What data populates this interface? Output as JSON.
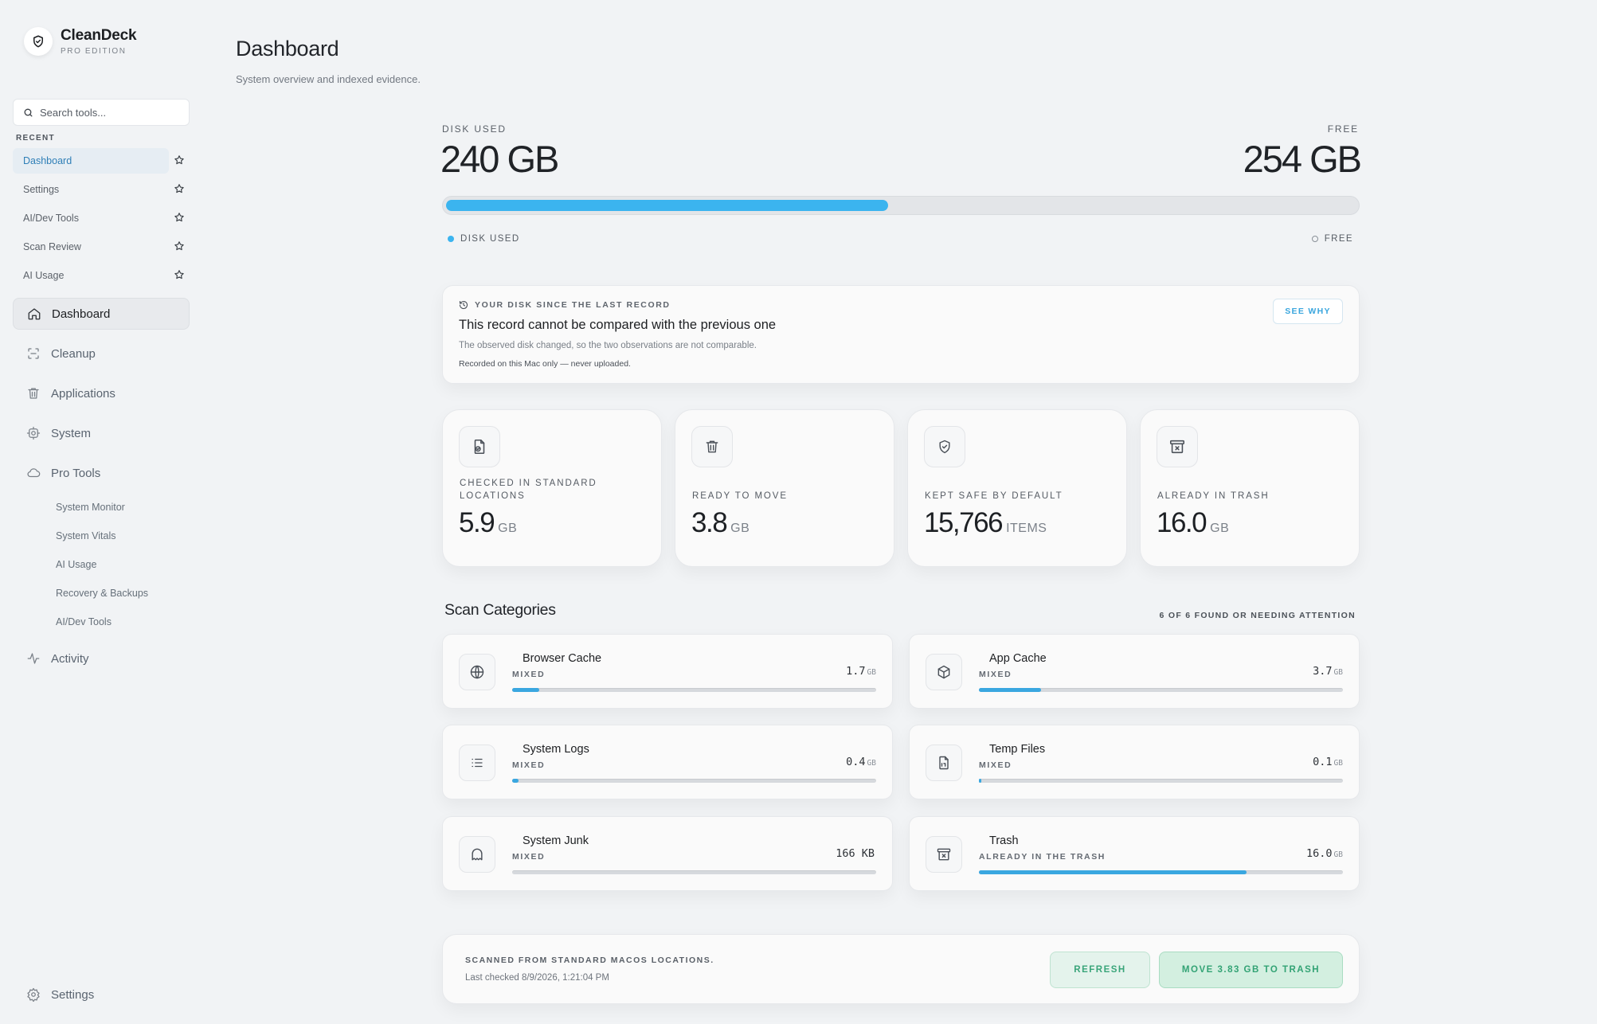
{
  "brand": {
    "name": "CleanDeck",
    "edition": "PRO EDITION"
  },
  "search": {
    "placeholder": "Search tools..."
  },
  "recent": {
    "label": "RECENT",
    "items": [
      {
        "label": "Dashboard"
      },
      {
        "label": "Settings"
      },
      {
        "label": "AI/Dev Tools"
      },
      {
        "label": "Scan Review"
      },
      {
        "label": "AI Usage"
      }
    ]
  },
  "nav": {
    "items": [
      {
        "label": "Dashboard",
        "icon": "home-icon"
      },
      {
        "label": "Cleanup",
        "icon": "scan-icon"
      },
      {
        "label": "Applications",
        "icon": "trash-icon"
      },
      {
        "label": "System",
        "icon": "gear-icon"
      },
      {
        "label": "Pro Tools",
        "icon": "cloud-icon"
      },
      {
        "label": "Activity",
        "icon": "activity-icon"
      }
    ],
    "pro_tools_sub": [
      {
        "label": "System Monitor"
      },
      {
        "label": "System Vitals"
      },
      {
        "label": "AI Usage"
      },
      {
        "label": "Recovery & Backups"
      },
      {
        "label": "AI/Dev Tools"
      }
    ],
    "settings": {
      "label": "Settings",
      "icon": "gear-icon"
    }
  },
  "header": {
    "title": "Dashboard",
    "subtitle": "System overview and indexed evidence."
  },
  "disk": {
    "used_label": "DISK USED",
    "used_value": "240 GB",
    "free_label": "FREE",
    "free_value": "254 GB",
    "used_fraction": 0.485,
    "legend_used": "DISK USED",
    "legend_free": "FREE",
    "color_used": "#3bb4ef"
  },
  "record": {
    "eyebrow": "YOUR DISK SINCE THE LAST RECORD",
    "title": "This record cannot be compared with the previous one",
    "description": "The observed disk changed, so the two observations are not comparable.",
    "note": "Recorded on this Mac only — never uploaded.",
    "button": "SEE WHY"
  },
  "stats": [
    {
      "label": "CHECKED IN STANDARD LOCATIONS",
      "value": "5.9",
      "unit": "GB",
      "icon": "file-check-icon"
    },
    {
      "label": "READY TO MOVE",
      "value": "3.8",
      "unit": "GB",
      "icon": "trash-icon"
    },
    {
      "label": "KEPT SAFE BY DEFAULT",
      "value": "15,766",
      "unit": "ITEMS",
      "icon": "shield-check-icon"
    },
    {
      "label": "ALREADY IN TRASH",
      "value": "16.0",
      "unit": "GB",
      "icon": "archive-x-icon"
    }
  ],
  "categories": {
    "title": "Scan Categories",
    "meta": "6 OF 6 FOUND OR NEEDING ATTENTION",
    "items": [
      {
        "name": "Browser Cache",
        "tag": "MIXED",
        "size": "1.7",
        "unit": "GB",
        "fraction": 0.075,
        "icon": "globe-icon"
      },
      {
        "name": "App Cache",
        "tag": "MIXED",
        "size": "3.7",
        "unit": "GB",
        "fraction": 0.17,
        "icon": "box-icon"
      },
      {
        "name": "System Logs",
        "tag": "MIXED",
        "size": "0.4",
        "unit": "GB",
        "fraction": 0.018,
        "icon": "list-icon"
      },
      {
        "name": "Temp Files",
        "tag": "MIXED",
        "size": "0.1",
        "unit": "GB",
        "fraction": 0.006,
        "icon": "file-code-icon"
      },
      {
        "name": "System Junk",
        "tag": "MIXED",
        "size": "166 KB",
        "unit": "",
        "fraction": 0.0,
        "icon": "ghost-icon"
      },
      {
        "name": "Trash",
        "tag": "ALREADY IN THE TRASH",
        "size": "16.0",
        "unit": "GB",
        "fraction": 0.735,
        "icon": "archive-x-icon"
      }
    ]
  },
  "footer": {
    "title": "SCANNED FROM STANDARD MACOS LOCATIONS.",
    "subtitle": "Last checked 8/9/2026, 1:21:04 PM",
    "refresh_label": "REFRESH",
    "move_label": "MOVE 3.83 GB TO TRASH"
  }
}
